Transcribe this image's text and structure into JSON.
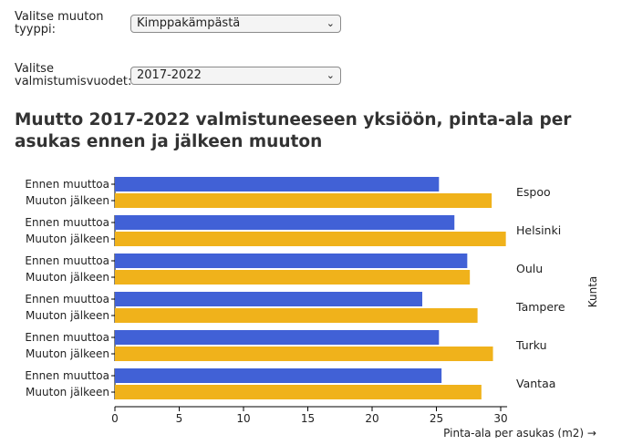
{
  "controls": {
    "move_type": {
      "label_line1": "Valitse muuton",
      "label_line2": "tyyppi:",
      "value": "Kimppakämpästä"
    },
    "years": {
      "label_line1": "Valitse",
      "label_line2": "valmistumisvuodet:",
      "value": "2017-2022"
    }
  },
  "chart_data": {
    "type": "bar",
    "orientation": "horizontal",
    "title": "Muutto 2017-2022 valmistuneeseen yksiöön, pinta-ala per asukas ennen ja jälkeen muuton",
    "xlabel": "Pinta-ala per asukas (m2) →",
    "ylabel": "Kunta",
    "xlim": [
      0,
      30.5
    ],
    "xticks": [
      0,
      5,
      10,
      15,
      20,
      25,
      30
    ],
    "categories": [
      "Espoo",
      "Helsinki",
      "Oulu",
      "Tampere",
      "Turku",
      "Vantaa"
    ],
    "series": [
      {
        "name": "Ennen muuttoa",
        "color": "#4161d6",
        "values": [
          25.2,
          26.4,
          27.4,
          23.9,
          25.2,
          25.4
        ]
      },
      {
        "name": "Muuton jälkeen",
        "color": "#f0b21b",
        "values": [
          29.3,
          30.4,
          27.6,
          28.2,
          29.4,
          28.5
        ]
      }
    ]
  }
}
